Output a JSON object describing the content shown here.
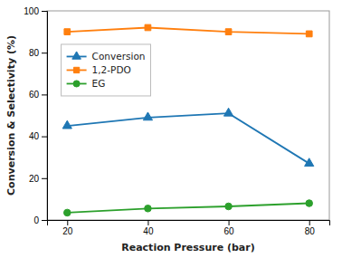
{
  "chart_data": {
    "type": "line",
    "xlabel": "Reaction Pressure (bar)",
    "ylabel": "Conversion & Selectivity (%)",
    "x": [
      20,
      40,
      60,
      80
    ],
    "series": [
      {
        "name": "Conversion",
        "values": [
          45,
          49,
          51,
          27
        ],
        "marker": "triangle"
      },
      {
        "name": "1,2-PDO",
        "values": [
          90,
          92,
          90,
          89
        ],
        "marker": "square"
      },
      {
        "name": "EG",
        "values": [
          3.5,
          5.5,
          6.5,
          8
        ],
        "marker": "circle"
      }
    ],
    "xlim": [
      15,
      85
    ],
    "xticks": [
      20,
      40,
      60,
      80
    ],
    "ylim": [
      0,
      100
    ],
    "yticks": [
      0,
      20,
      40,
      60,
      80,
      100
    ],
    "grid": false,
    "legend": "upper left"
  }
}
